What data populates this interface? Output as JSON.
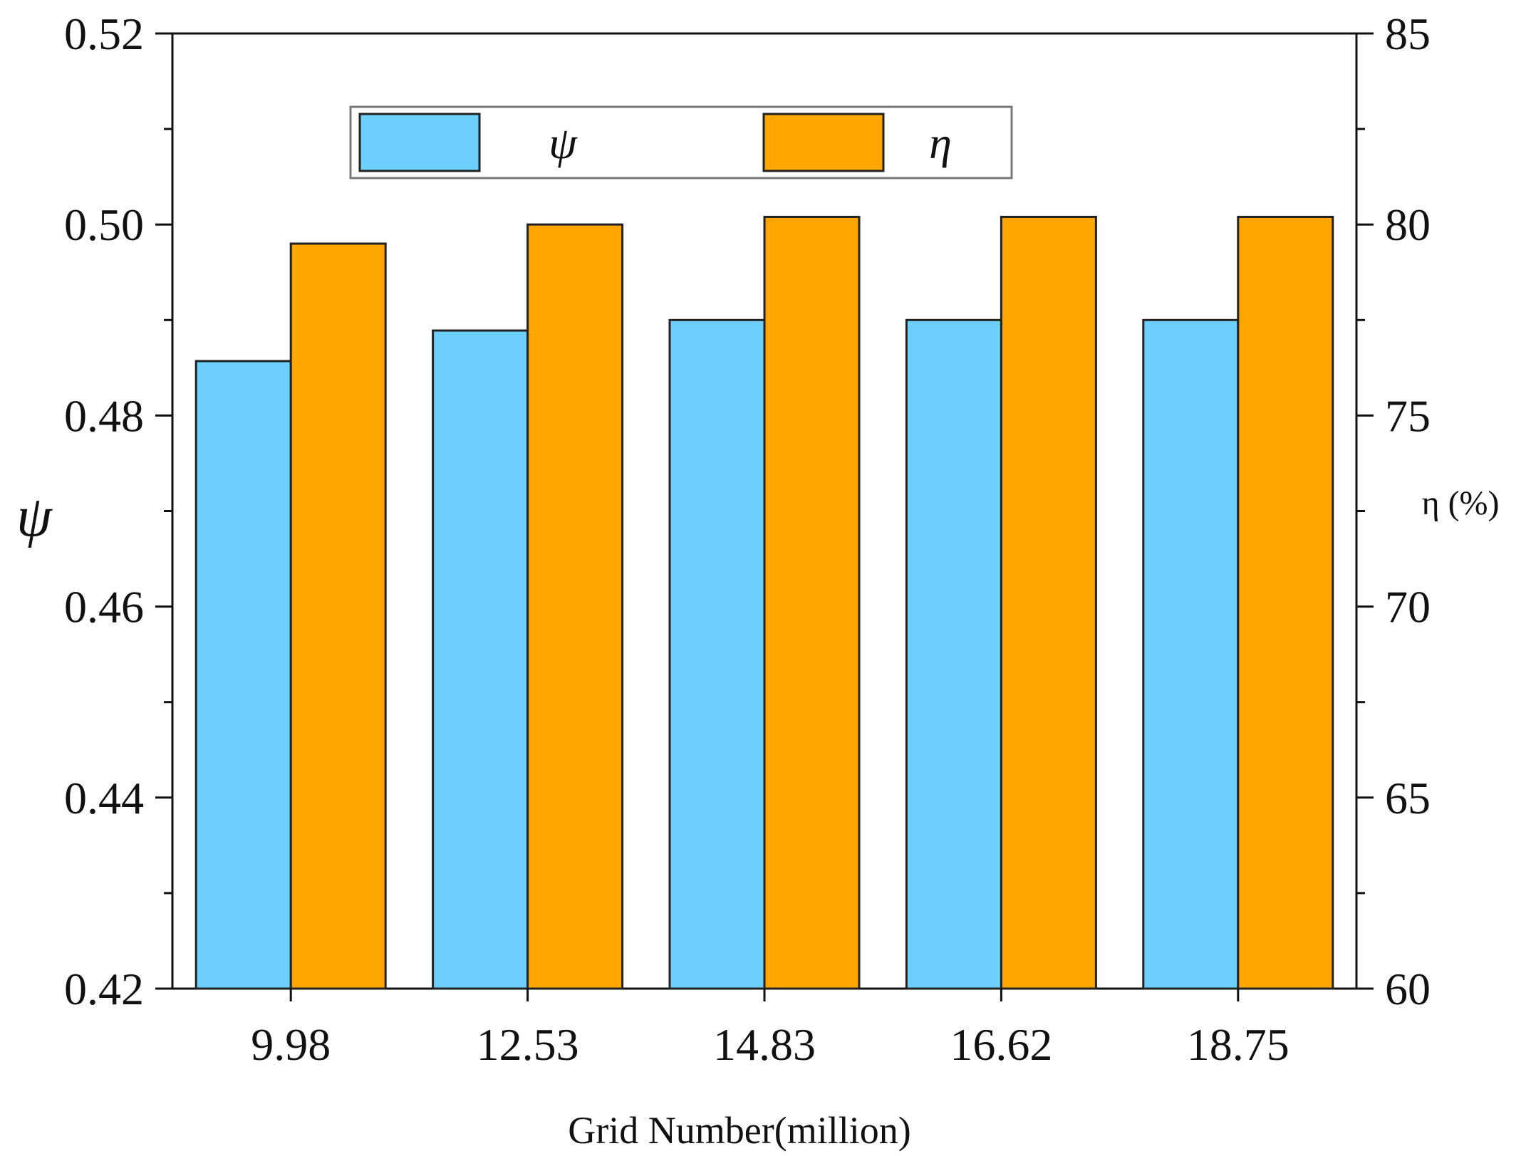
{
  "chart_data": {
    "type": "bar",
    "title": "",
    "xlabel": "Grid Number(million)",
    "ylabel_left": "ψ",
    "ylabel_right": "η (%)",
    "categories": [
      "9.98",
      "12.53",
      "14.83",
      "16.62",
      "18.75"
    ],
    "series": [
      {
        "name": "ψ",
        "axis": "left",
        "color": "#6ccffd",
        "values": [
          0.4857,
          0.4889,
          0.49,
          0.49,
          0.49
        ]
      },
      {
        "name": "η",
        "axis": "right",
        "color": "#ffa500",
        "values": [
          79.5,
          80.0,
          80.2,
          80.2,
          80.2
        ]
      }
    ],
    "ylim_left": [
      0.42,
      0.52
    ],
    "ylim_right": [
      60,
      85
    ],
    "yticks_left": [
      "0.42",
      "0.44",
      "0.46",
      "0.48",
      "0.50",
      "0.52"
    ],
    "yticks_right": [
      "60",
      "65",
      "70",
      "75",
      "80",
      "85"
    ],
    "legend": {
      "position": "top-center",
      "entries": [
        "ψ",
        "η"
      ]
    },
    "grid": false
  }
}
